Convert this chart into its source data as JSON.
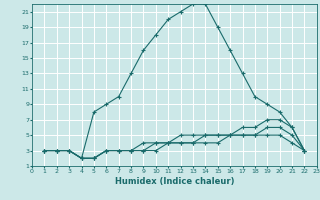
{
  "xlabel": "Humidex (Indice chaleur)",
  "bg_color": "#cce8e8",
  "grid_color": "#ffffff",
  "line_color": "#1a6b6b",
  "xlim": [
    0,
    23
  ],
  "ylim": [
    1,
    22
  ],
  "xticks": [
    0,
    1,
    2,
    3,
    4,
    5,
    6,
    7,
    8,
    9,
    10,
    11,
    12,
    13,
    14,
    15,
    16,
    17,
    18,
    19,
    20,
    21,
    22,
    23
  ],
  "yticks": [
    1,
    3,
    5,
    7,
    9,
    11,
    13,
    15,
    17,
    19,
    21
  ],
  "line1_x": [
    1,
    2,
    3,
    4,
    5,
    6,
    7,
    8,
    9,
    10,
    11,
    12,
    13,
    14,
    15,
    16,
    17,
    18,
    19,
    20,
    21,
    22
  ],
  "line1_y": [
    3,
    3,
    3,
    2,
    8,
    9,
    10,
    13,
    16,
    18,
    20,
    21,
    22,
    22,
    19,
    16,
    13,
    10,
    9,
    8,
    6,
    3
  ],
  "line2_x": [
    1,
    2,
    3,
    4,
    5,
    6,
    7,
    8,
    9,
    10,
    11,
    12,
    13,
    14,
    15,
    16,
    17,
    18,
    19,
    20,
    21,
    22
  ],
  "line2_y": [
    3,
    3,
    3,
    2,
    2,
    3,
    3,
    3,
    3,
    4,
    4,
    4,
    4,
    5,
    5,
    5,
    5,
    5,
    6,
    6,
    5,
    3
  ],
  "line3_x": [
    1,
    2,
    3,
    4,
    5,
    6,
    7,
    8,
    9,
    10,
    11,
    12,
    13,
    14,
    15,
    16,
    17,
    18,
    19,
    20,
    21,
    22
  ],
  "line3_y": [
    3,
    3,
    3,
    2,
    2,
    3,
    3,
    3,
    4,
    4,
    4,
    5,
    5,
    5,
    5,
    5,
    6,
    6,
    7,
    7,
    6,
    3
  ],
  "line4_x": [
    1,
    2,
    3,
    4,
    5,
    6,
    7,
    8,
    9,
    10,
    11,
    12,
    13,
    14,
    15,
    16,
    17,
    18,
    19,
    20,
    21,
    22
  ],
  "line4_y": [
    3,
    3,
    3,
    2,
    2,
    3,
    3,
    3,
    3,
    3,
    4,
    4,
    4,
    4,
    4,
    5,
    5,
    5,
    5,
    5,
    4,
    3
  ]
}
